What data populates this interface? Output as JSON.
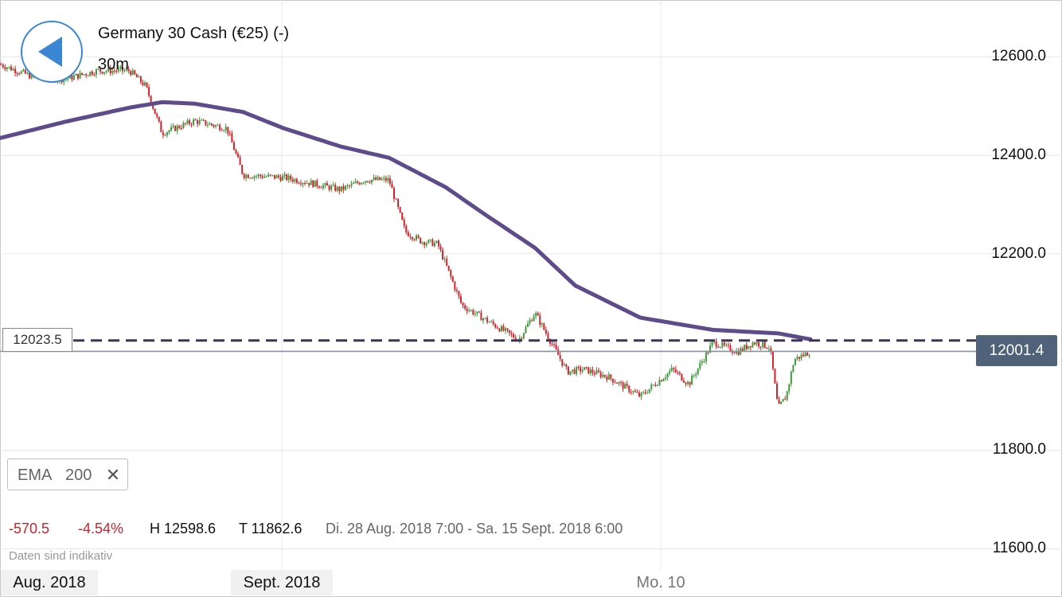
{
  "header": {
    "instrument": "Germany 30 Cash (€25) (-)",
    "timeframe": "30m"
  },
  "colors": {
    "up": "#3c9a3c",
    "down": "#d0232a",
    "ema": "#5e4b8b",
    "grid": "#e8e8e8",
    "price_tag": "#4f6279"
  },
  "icons": {
    "back": "back-arrow-icon",
    "remove": "close-icon"
  },
  "indicator": {
    "name": "EMA",
    "period": "200",
    "remove_label": "✕"
  },
  "stats": {
    "change": "-570.5",
    "change_pct": "-4.54%",
    "high": "H 12598.6",
    "low": "T 11862.6",
    "range": "Di. 28 Aug. 2018 7:00 - Sa. 15 Sept. 2018 6:00"
  },
  "footnote": "Daten sind indikativ",
  "chart_data": {
    "type": "candlestick",
    "interval": "30m",
    "ylim": [
      11565,
      12695
    ],
    "y_ticks": [
      "12600.0",
      "12400.0",
      "12200.0",
      "11800.0",
      "11600.0"
    ],
    "x_labels": [
      "Aug. 2018",
      "Sept. 2018",
      "Mo. 10"
    ],
    "current_price": "12001.4",
    "current_price_value": 12001.4,
    "level_line": "12023.5",
    "level_value": 12023.5,
    "ema": {
      "name": "EMA 200",
      "x": [
        0,
        0.08,
        0.16,
        0.2,
        0.24,
        0.3,
        0.35,
        0.42,
        0.48,
        0.55,
        0.6,
        0.66,
        0.71,
        0.79,
        0.88,
        0.96,
        1.0
      ],
      "y": [
        12435,
        12468,
        12497,
        12508,
        12505,
        12488,
        12455,
        12418,
        12395,
        12335,
        12278,
        12212,
        12135,
        12070,
        12045,
        12038,
        12026
      ]
    },
    "price_path": {
      "x": [
        0,
        0.04,
        0.08,
        0.12,
        0.16,
        0.18,
        0.2,
        0.24,
        0.28,
        0.3,
        0.35,
        0.38,
        0.42,
        0.45,
        0.48,
        0.5,
        0.52,
        0.54,
        0.57,
        0.6,
        0.64,
        0.66,
        0.7,
        0.72,
        0.75,
        0.79,
        0.83,
        0.85,
        0.88,
        0.91,
        0.93,
        0.95,
        0.96,
        0.97,
        0.98,
        1.0
      ],
      "y": [
        12585,
        12560,
        12555,
        12572,
        12572,
        12540,
        12445,
        12470,
        12455,
        12360,
        12355,
        12345,
        12330,
        12350,
        12350,
        12245,
        12225,
        12220,
        12095,
        12065,
        12025,
        12080,
        11960,
        11965,
        11950,
        11910,
        11965,
        11935,
        12020,
        12000,
        12020,
        12010,
        11885,
        11910,
        11985,
        12001
      ]
    }
  }
}
